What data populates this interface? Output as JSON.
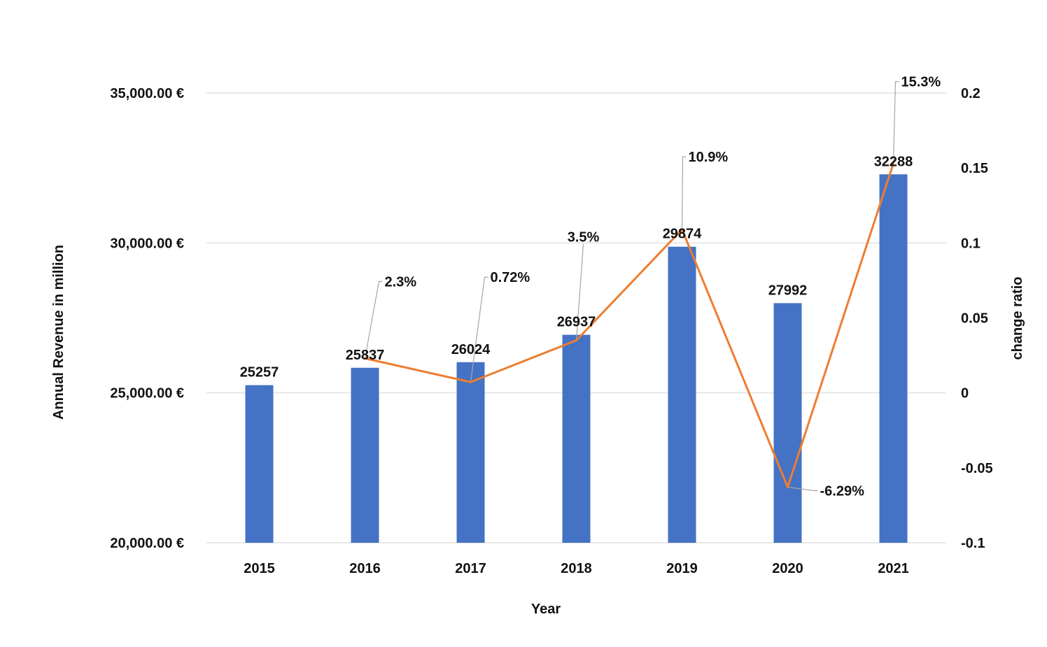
{
  "chart_data": {
    "type": "bar",
    "categories": [
      "2015",
      "2016",
      "2017",
      "2018",
      "2019",
      "2020",
      "2021"
    ],
    "series": [
      {
        "type": "bar",
        "axis": "left",
        "values": [
          25257,
          25837,
          26024,
          26937,
          29874,
          27992,
          32288
        ],
        "value_labels": [
          "25257",
          "25837",
          "26024",
          "26937",
          "29874",
          "27992",
          "32288"
        ],
        "color": "#4472C4"
      },
      {
        "type": "line",
        "axis": "right",
        "x": [
          "2016",
          "2017",
          "2018",
          "2019",
          "2020",
          "2021"
        ],
        "values": [
          0.023,
          0.0072,
          0.035,
          0.109,
          -0.0629,
          0.153
        ],
        "value_labels": [
          "2.3%",
          "0.72%",
          "3.5%",
          "10.9%",
          "-6.29%",
          "15.3%"
        ],
        "color": "#ED7D31"
      }
    ],
    "xlabel": "Year",
    "ylabel": "Annual Revenue in million",
    "y2label": "change ratio",
    "ylim": [
      20000,
      35000
    ],
    "y_ticks": [
      20000,
      25000,
      30000,
      35000
    ],
    "y_tick_labels": [
      "20,000.00 €",
      "25,000.00 €",
      "30,000.00 €",
      "35,000.00 €"
    ],
    "y2lim": [
      -0.1,
      0.2
    ],
    "y2_ticks": [
      -0.1,
      -0.05,
      0,
      0.05,
      0.1,
      0.15,
      0.2
    ],
    "y2_tick_labels": [
      "-0.1",
      "-0.05",
      "0",
      "0.05",
      "0.1",
      "0.15",
      "0.2"
    ],
    "grid": true,
    "legend": "none",
    "gridline_color": "#D9D9D9",
    "leader_line_color": "#A6A6A6"
  }
}
